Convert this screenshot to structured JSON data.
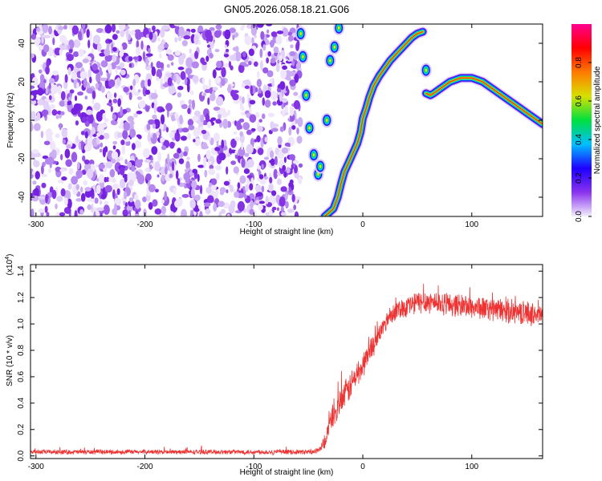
{
  "title": "GN05.2026.058.18.21.G06",
  "chart_data": [
    {
      "type": "heatmap",
      "xlabel": "Height of straight line (km)",
      "ylabel": "Frequency (Hz)",
      "xlim": [
        -305,
        165
      ],
      "ylim": [
        -50,
        50
      ],
      "x_ticks": [
        -300,
        -200,
        -100,
        0,
        100
      ],
      "x_tick_labels": [
        "-300",
        "-200",
        "-100",
        "0",
        "100"
      ],
      "y_ticks": [
        -40,
        -20,
        0,
        20,
        40
      ],
      "y_tick_labels": [
        "-40",
        "-20",
        "0",
        "20",
        "40"
      ],
      "colorbar": {
        "label": "Normalized spectral amplitude",
        "range": [
          0,
          1
        ],
        "ticks": [
          0.0,
          0.2,
          0.4,
          0.6,
          0.8
        ],
        "tick_labels": [
          "0.0",
          "0.2",
          "0.4",
          "0.6",
          "0.8"
        ],
        "colormap": [
          "#f4f0fc",
          "#8a33ee",
          "#1e00ff",
          "#00bfff",
          "#00e040",
          "#d8e000",
          "#ff7a00",
          "#ff0000",
          "#ff0090"
        ]
      },
      "noise_region": {
        "x": [
          -305,
          -57
        ],
        "frequency": [
          -50,
          50
        ]
      },
      "main_ridge": {
        "x": [
          -35,
          -27,
          -23,
          -20,
          -17,
          -13,
          -9,
          -5,
          -2,
          0,
          3,
          6,
          10,
          15,
          20,
          25,
          30,
          35,
          40,
          45,
          50,
          55
        ],
        "frequency": [
          -50,
          -46,
          -40,
          -33,
          -27,
          -22,
          -17,
          -12,
          -6,
          1,
          6,
          12,
          18,
          23,
          27,
          31,
          34,
          37,
          40,
          43,
          45,
          46
        ]
      },
      "upper_ridge": {
        "x": [
          58,
          62,
          65,
          70,
          75,
          80,
          85,
          90,
          95,
          100,
          105,
          110,
          115,
          120,
          125,
          130,
          135,
          140,
          145,
          150,
          155,
          160,
          165
        ],
        "frequency": [
          14,
          13,
          14,
          16,
          18,
          20,
          21,
          22,
          22,
          22,
          21,
          20,
          18,
          16,
          14,
          12,
          10,
          8,
          6,
          4,
          2,
          0,
          -2
        ]
      },
      "fragments": [
        {
          "x": -57,
          "frequency": 45
        },
        {
          "x": -55,
          "frequency": 33
        },
        {
          "x": -52,
          "frequency": 13
        },
        {
          "x": -49,
          "frequency": -4
        },
        {
          "x": -45,
          "frequency": -18
        },
        {
          "x": -41,
          "frequency": -28
        },
        {
          "x": -39,
          "frequency": -24
        },
        {
          "x": -33,
          "frequency": 0
        },
        {
          "x": -30,
          "frequency": 31
        },
        {
          "x": -26,
          "frequency": 38
        },
        {
          "x": -22,
          "frequency": 48
        },
        {
          "x": 58,
          "frequency": 26
        }
      ]
    },
    {
      "type": "line",
      "xlabel": "Height of straight line (km)",
      "ylabel": "SNR (10 * v/v)",
      "y_multiplier_label": "(x10",
      "y_multiplier_exponent": "4",
      "y_multiplier_suffix": ")",
      "xlim": [
        -305,
        165
      ],
      "ylim": [
        -0.02,
        1.45
      ],
      "x_ticks": [
        -300,
        -200,
        -100,
        0,
        100
      ],
      "x_tick_labels": [
        "-300",
        "-200",
        "-100",
        "0",
        "100"
      ],
      "y_ticks": [
        0.0,
        0.2,
        0.4,
        0.6,
        0.8,
        1.0,
        1.2,
        1.4
      ],
      "y_tick_labels": [
        "0.0",
        "0.2",
        "0.4",
        "0.6",
        "0.8",
        "1.0",
        "1.2",
        "1.4"
      ],
      "color": "#ee3333",
      "series": [
        {
          "x": [
            -305,
            -280,
            -250,
            -220,
            -200,
            -150,
            -100,
            -60,
            -45,
            -40,
            -35,
            -30,
            -27,
            -25,
            -22,
            -20,
            -15,
            -10,
            -5,
            0,
            5,
            10,
            15,
            20,
            25,
            30,
            35,
            40,
            45,
            50,
            55,
            60,
            70,
            80,
            90,
            100,
            110,
            120,
            130,
            140,
            150,
            160,
            165
          ],
          "values": [
            0.03,
            0.03,
            0.03,
            0.03,
            0.03,
            0.03,
            0.03,
            0.03,
            0.03,
            0.04,
            0.1,
            0.25,
            0.33,
            0.32,
            0.38,
            0.42,
            0.48,
            0.55,
            0.62,
            0.68,
            0.78,
            0.85,
            0.92,
            1.0,
            1.07,
            1.1,
            1.12,
            1.13,
            1.15,
            1.16,
            1.17,
            1.17,
            1.16,
            1.15,
            1.14,
            1.13,
            1.12,
            1.11,
            1.1,
            1.09,
            1.08,
            1.07,
            1.06
          ],
          "jitter": [
            0.02,
            0.02,
            0.02,
            0.02,
            0.02,
            0.02,
            0.02,
            0.02,
            0.02,
            0.03,
            0.06,
            0.08,
            0.12,
            0.12,
            0.12,
            0.12,
            0.12,
            0.12,
            0.12,
            0.11,
            0.1,
            0.1,
            0.08,
            0.08,
            0.08,
            0.08,
            0.09,
            0.09,
            0.1,
            0.1,
            0.1,
            0.1,
            0.1,
            0.1,
            0.1,
            0.1,
            0.1,
            0.1,
            0.1,
            0.1,
            0.1,
            0.1,
            0.1
          ]
        }
      ]
    }
  ]
}
